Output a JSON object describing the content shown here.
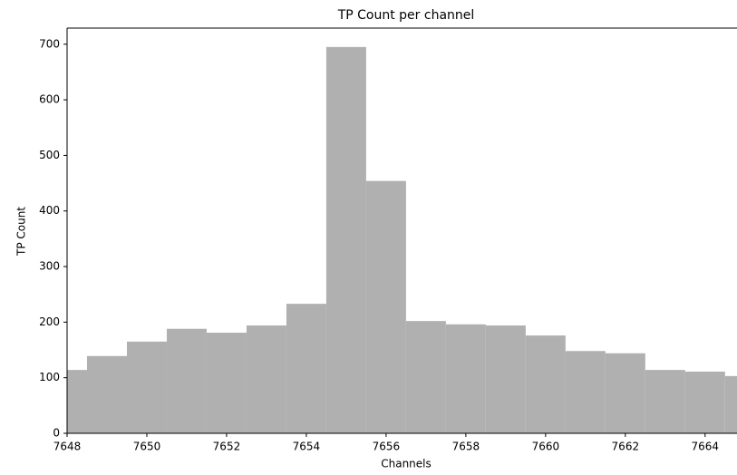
{
  "chart_data": {
    "type": "histogram",
    "title": "TP Count per channel",
    "x_label": "Channels",
    "y_label": "TP Count",
    "bins": [
      7647.5,
      7648.5,
      7649.5,
      7650.5,
      7651.5,
      7652.5,
      7653.5,
      7654.5,
      7655.5,
      7656.5,
      7657.5,
      7658.5,
      7659.5,
      7660.5,
      7661.5,
      7662.5,
      7663.5,
      7664.5,
      7665.5
    ],
    "values": [
      114,
      139,
      165,
      188,
      181,
      194,
      233,
      695,
      454,
      202,
      196,
      194,
      176,
      148,
      144,
      114,
      111,
      103
    ],
    "color": "#b0b0b0",
    "xlim": [
      7648,
      7664.8
    ],
    "xticks": [
      7648,
      7650,
      7652,
      7654,
      7656,
      7658,
      7660,
      7662,
      7664
    ],
    "ylim": [
      0,
      729
    ],
    "yticks": [
      0,
      100,
      200,
      300,
      400,
      500,
      600,
      700
    ]
  }
}
